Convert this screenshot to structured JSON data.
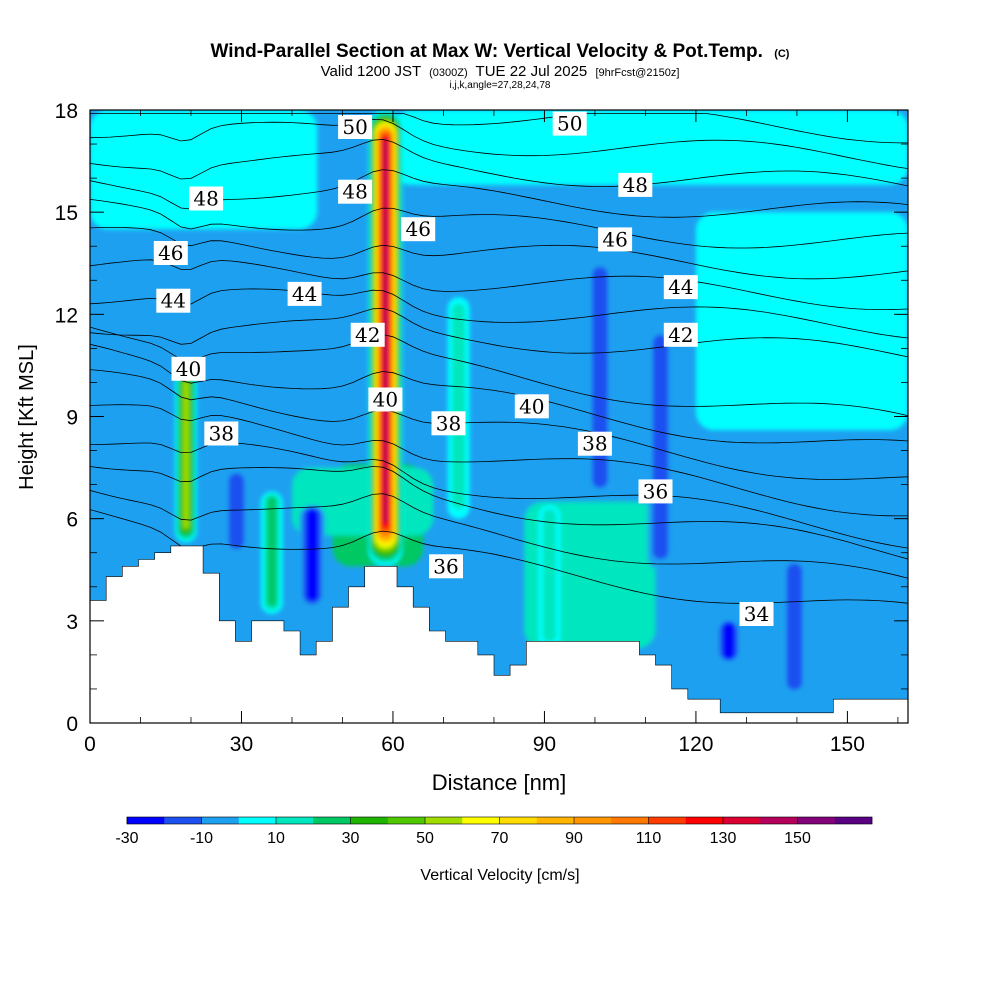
{
  "chart_data": {
    "type": "heatmap",
    "title": "Wind-Parallel Section at Max W: Vertical Velocity & Pot.Temp.",
    "title_suffix": "(C)",
    "subtitle": {
      "valid": "Valid 1200 JST",
      "utc": "(0300Z)",
      "date": "TUE 22 Jul 2025",
      "fcst": "[9hrFcst@2150z]"
    },
    "indices": "i,j,k,angle=27,28,24,78",
    "xlabel": "Distance [nm]",
    "ylabel": "Height [Kft MSL]",
    "xlim": [
      0,
      162
    ],
    "ylim": [
      0,
      18
    ],
    "x_ticks": [
      0,
      30,
      60,
      90,
      120,
      150
    ],
    "x_tick_labels": [
      "0",
      "30",
      "60",
      "90",
      "120",
      "150"
    ],
    "y_ticks": [
      0,
      3,
      6,
      9,
      12,
      15,
      18
    ],
    "y_tick_labels": [
      "0",
      "3",
      "6",
      "9",
      "12",
      "15",
      "18"
    ],
    "colorbar": {
      "label": "Vertical Velocity [cm/s]",
      "levels": [
        -30,
        -20,
        -10,
        0,
        10,
        20,
        30,
        40,
        50,
        60,
        70,
        80,
        90,
        100,
        110,
        120,
        130,
        140,
        150,
        160
      ],
      "tick_values": [
        -30,
        -10,
        10,
        30,
        50,
        70,
        90,
        110,
        130,
        150
      ],
      "tick_labels": [
        "-30",
        "-10",
        "10",
        "30",
        "50",
        "70",
        "90",
        "110",
        "130",
        "150"
      ],
      "colors": [
        "#0000ff",
        "#1e50f0",
        "#1ea0f0",
        "#00ffff",
        "#00e6be",
        "#00c864",
        "#1eb400",
        "#50c800",
        "#a0dc00",
        "#ffff00",
        "#ffdc00",
        "#ffb400",
        "#ff9600",
        "#ff7800",
        "#ff3c00",
        "#ff0000",
        "#dc0032",
        "#b4005a",
        "#820078",
        "#5a0082"
      ]
    },
    "contour_labels": [
      {
        "text": "50",
        "x": 52.5,
        "y": 17.5
      },
      {
        "text": "50",
        "x": 95,
        "y": 17.6
      },
      {
        "text": "48",
        "x": 23,
        "y": 15.4
      },
      {
        "text": "48",
        "x": 52.5,
        "y": 15.6
      },
      {
        "text": "48",
        "x": 108,
        "y": 15.8
      },
      {
        "text": "46",
        "x": 16,
        "y": 13.8
      },
      {
        "text": "46",
        "x": 65,
        "y": 14.5
      },
      {
        "text": "46",
        "x": 104,
        "y": 14.2
      },
      {
        "text": "44",
        "x": 16.5,
        "y": 12.4
      },
      {
        "text": "44",
        "x": 42.5,
        "y": 12.6
      },
      {
        "text": "44",
        "x": 117,
        "y": 12.8
      },
      {
        "text": "42",
        "x": 55,
        "y": 11.4
      },
      {
        "text": "42",
        "x": 117,
        "y": 11.4
      },
      {
        "text": "40",
        "x": 19.5,
        "y": 10.4
      },
      {
        "text": "40",
        "x": 58.5,
        "y": 9.5
      },
      {
        "text": "40",
        "x": 87.5,
        "y": 9.3
      },
      {
        "text": "38",
        "x": 26,
        "y": 8.5
      },
      {
        "text": "38",
        "x": 71,
        "y": 8.8
      },
      {
        "text": "38",
        "x": 100,
        "y": 8.2
      },
      {
        "text": "36",
        "x": 112,
        "y": 6.8
      },
      {
        "text": "36",
        "x": 70.5,
        "y": 4.6
      },
      {
        "text": "34",
        "x": 132,
        "y": 3.2
      }
    ],
    "potential_temperature_levels": [
      34,
      35,
      36,
      37,
      38,
      39,
      40,
      41,
      42,
      43,
      44,
      45,
      46,
      47,
      48,
      49,
      50
    ],
    "terrain_profile": [
      [
        0,
        3.6
      ],
      [
        3.2,
        4.3
      ],
      [
        6.4,
        4.6
      ],
      [
        9.6,
        4.8
      ],
      [
        12.8,
        5.0
      ],
      [
        16,
        5.2
      ],
      [
        19.2,
        5.2
      ],
      [
        22.4,
        4.4
      ],
      [
        25.6,
        3.0
      ],
      [
        28.8,
        2.4
      ],
      [
        32,
        3.0
      ],
      [
        35.2,
        3.0
      ],
      [
        38.4,
        2.7
      ],
      [
        41.6,
        2.0
      ],
      [
        44.8,
        2.4
      ],
      [
        48,
        3.4
      ],
      [
        51.2,
        4.0
      ],
      [
        54.4,
        4.6
      ],
      [
        57.6,
        4.6
      ],
      [
        60.8,
        4.0
      ],
      [
        64,
        3.4
      ],
      [
        67.2,
        2.7
      ],
      [
        70.4,
        2.4
      ],
      [
        73.6,
        2.4
      ],
      [
        76.8,
        2.0
      ],
      [
        80,
        1.4
      ],
      [
        83.2,
        1.7
      ],
      [
        86.4,
        2.4
      ],
      [
        89.6,
        2.4
      ],
      [
        92.8,
        2.4
      ],
      [
        96,
        2.4
      ],
      [
        99.2,
        2.4
      ],
      [
        102.4,
        2.4
      ],
      [
        105.6,
        2.4
      ],
      [
        108.8,
        2.0
      ],
      [
        112,
        1.7
      ],
      [
        115.2,
        1.0
      ],
      [
        118.4,
        0.7
      ],
      [
        121.6,
        0.7
      ],
      [
        124.8,
        0.3
      ],
      [
        128,
        0.3
      ],
      [
        131.2,
        0.3
      ],
      [
        134.4,
        0.3
      ],
      [
        137.6,
        0.3
      ],
      [
        140.8,
        0.3
      ],
      [
        144,
        0.3
      ],
      [
        147.2,
        0.7
      ],
      [
        150.4,
        0.7
      ],
      [
        153.6,
        0.7
      ],
      [
        156.8,
        0.7
      ],
      [
        162,
        0.7
      ]
    ],
    "updraft_cores": [
      {
        "x": 58.5,
        "top": 18,
        "base": 4.6,
        "peak": 140
      },
      {
        "x": 19,
        "top": 10.3,
        "base": 5.3,
        "peak": 55
      },
      {
        "x": 73,
        "top": 12.5,
        "base": 6.0,
        "peak": 15
      },
      {
        "x": 91,
        "top": 6.4,
        "base": 2.2,
        "peak": 18
      },
      {
        "x": 36,
        "top": 6.8,
        "base": 3.2,
        "peak": 20
      }
    ],
    "downdraft_cores": [
      {
        "x": 101,
        "top": 13.6,
        "base": 6.6,
        "peak": -22
      },
      {
        "x": 113,
        "top": 11.6,
        "base": 4.5,
        "peak": -20
      },
      {
        "x": 44,
        "top": 6.4,
        "base": 3.4,
        "peak": -30
      },
      {
        "x": 29,
        "top": 7.4,
        "base": 5.0,
        "peak": -25
      },
      {
        "x": 126.5,
        "top": 3.0,
        "base": 1.8,
        "peak": -30
      },
      {
        "x": 139.5,
        "top": 4.8,
        "base": 0.8,
        "peak": -28
      }
    ]
  }
}
